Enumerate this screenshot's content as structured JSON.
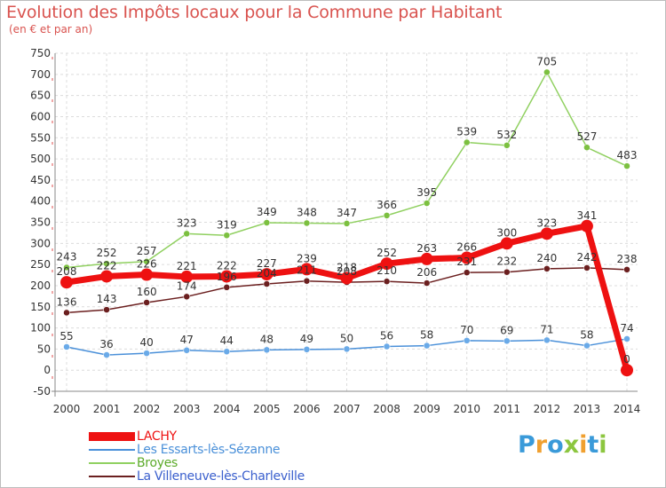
{
  "header": {
    "title": "Evolution des Impôts locaux pour la Commune par Habitant",
    "subtitle": "(en € et par an)"
  },
  "logo": {
    "text": "Proxiti",
    "letters": [
      "P",
      "r",
      "o",
      "x",
      "i",
      "t",
      "i"
    ],
    "colors": [
      "#3a9ad9",
      "#f0a030",
      "#3a9ad9",
      "#8cc63f",
      "#f0a030",
      "#3a9ad9",
      "#8cc63f"
    ]
  },
  "chart_data": {
    "type": "line",
    "title": "Evolution des Impôts locaux pour la Commune par Habitant",
    "subtitle": "(en € et par an)",
    "xlabel": "",
    "ylabel": "",
    "x": [
      "2000",
      "2001",
      "2002",
      "2003",
      "2004",
      "2005",
      "2006",
      "2007",
      "2008",
      "2009",
      "2010",
      "2011",
      "2012",
      "2013",
      "2014"
    ],
    "ylim": [
      -50,
      750
    ],
    "yticks": [
      -50,
      0,
      50,
      100,
      150,
      200,
      250,
      300,
      350,
      400,
      450,
      500,
      550,
      600,
      650,
      700,
      750
    ],
    "ytick_labels": [
      "-50",
      "0",
      "50",
      "100",
      "150",
      "200",
      "250",
      "300",
      "350",
      "400",
      "450",
      "500",
      "550",
      "600",
      "650",
      "700",
      "750"
    ],
    "grid": true,
    "legend_position": "bottom-left",
    "series": [
      {
        "name": "Les Essarts-lès-Sézanne",
        "color": "#4a90d9",
        "marker": "#6aaae8",
        "values": [
          55,
          36,
          40,
          47,
          44,
          48,
          49,
          50,
          56,
          58,
          70,
          69,
          71,
          58,
          74
        ],
        "labels": [
          "55",
          "36",
          "40",
          "47",
          "44",
          "48",
          "49",
          "50",
          "56",
          "58",
          "70",
          "69",
          "71",
          "58",
          "74"
        ]
      },
      {
        "name": "Broyes",
        "color": "#90d060",
        "marker": "#7cc040",
        "values": [
          243,
          252,
          257,
          323,
          319,
          349,
          348,
          347,
          366,
          395,
          539,
          532,
          705,
          527,
          483
        ],
        "labels": [
          "243",
          "252",
          "257",
          "323",
          "319",
          "349",
          "348",
          "347",
          "366",
          "395",
          "539",
          "532",
          "705",
          "527",
          "483"
        ]
      },
      {
        "name": "La Villeneuve-lès-Charleville",
        "color": "#6b1f1f",
        "marker": "#6b1f1f",
        "values": [
          136,
          143,
          160,
          174,
          196,
          204,
          211,
          208,
          210,
          206,
          231,
          232,
          240,
          242,
          238
        ],
        "labels": [
          "136",
          "143",
          "160",
          "174",
          "196",
          "204",
          "211",
          "208",
          "210",
          "206",
          "231",
          "232",
          "240",
          "242",
          "238"
        ]
      },
      {
        "name": "LACHY",
        "color": "#ee1111",
        "marker": "#ee1111",
        "values": [
          208,
          222,
          226,
          221,
          222,
          227,
          239,
          218,
          252,
          263,
          266,
          300,
          323,
          341,
          0
        ],
        "labels": [
          "208",
          "222",
          "226",
          "221",
          "222",
          "227",
          "239",
          "218",
          "252",
          "263",
          "266",
          "300",
          "323",
          "341",
          "0"
        ]
      }
    ]
  },
  "legend": {
    "items": [
      {
        "label": "LACHY",
        "color": "#ee1111"
      },
      {
        "label": "Les Essarts-lès-Sézanne",
        "color": "#4a90d9"
      },
      {
        "label": "Broyes",
        "color": "#90d060"
      },
      {
        "label": "La Villeneuve-lès-Charleville",
        "color": "#6b1f1f"
      }
    ]
  }
}
